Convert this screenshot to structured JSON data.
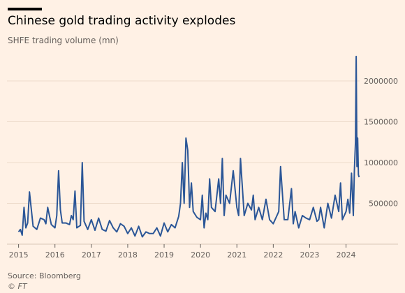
{
  "header": {
    "title": "Chinese gold trading activity explodes",
    "subtitle": "SHFE trading volume (mn)"
  },
  "footer": {
    "source": "Source: Bloomberg",
    "credit": "© FT"
  },
  "colors": {
    "background": "#fff1e5",
    "line": "#2b5697",
    "grid": "#eddbcb",
    "text": "#66605c",
    "title": "#000000",
    "topbar": "#000000"
  },
  "chart_data": {
    "type": "line",
    "title": "Chinese gold trading activity explodes",
    "subtitle": "SHFE trading volume (mn)",
    "xlabel": "",
    "ylabel": "",
    "xlim": [
      2014.95,
      2024.45
    ],
    "ylim": [
      0,
      2350000
    ],
    "x_ticks": [
      2015,
      2016,
      2017,
      2018,
      2019,
      2020,
      2021,
      2022,
      2023,
      2024
    ],
    "x_tick_labels": [
      "2015",
      "2016",
      "2017",
      "2018",
      "2019",
      "2020",
      "2021",
      "2022",
      "2023",
      "2024"
    ],
    "y_ticks": [
      500000,
      1000000,
      1500000,
      2000000
    ],
    "y_tick_labels": [
      "500000",
      "1000000",
      "1500000",
      "2000000"
    ],
    "y_axis_side": "right",
    "grid": "horizontal",
    "legend": "none",
    "series": [
      {
        "x": [
          2015.0,
          2015.05,
          2015.1,
          2015.15,
          2015.2,
          2015.25,
          2015.3,
          2015.4,
          2015.5,
          2015.6,
          2015.7,
          2015.75,
          2015.8,
          2015.9,
          2016.0,
          2016.05,
          2016.1,
          2016.15,
          2016.2,
          2016.3,
          2016.4,
          2016.45,
          2016.5,
          2016.55,
          2016.6,
          2016.7,
          2016.75,
          2016.8,
          2016.9,
          2017.0,
          2017.1,
          2017.2,
          2017.3,
          2017.4,
          2017.5,
          2017.6,
          2017.7,
          2017.8,
          2017.9,
          2018.0,
          2018.1,
          2018.2,
          2018.3,
          2018.4,
          2018.5,
          2018.6,
          2018.7,
          2018.8,
          2018.9,
          2019.0,
          2019.1,
          2019.2,
          2019.3,
          2019.4,
          2019.45,
          2019.5,
          2019.55,
          2019.6,
          2019.65,
          2019.7,
          2019.75,
          2019.8,
          2019.9,
          2020.0,
          2020.05,
          2020.1,
          2020.15,
          2020.2,
          2020.25,
          2020.3,
          2020.4,
          2020.5,
          2020.55,
          2020.6,
          2020.65,
          2020.7,
          2020.8,
          2020.9,
          2021.0,
          2021.05,
          2021.1,
          2021.2,
          2021.3,
          2021.4,
          2021.45,
          2021.5,
          2021.6,
          2021.7,
          2021.8,
          2021.9,
          2022.0,
          2022.1,
          2022.15,
          2022.2,
          2022.3,
          2022.4,
          2022.5,
          2022.55,
          2022.6,
          2022.7,
          2022.8,
          2022.9,
          2023.0,
          2023.1,
          2023.2,
          2023.25,
          2023.3,
          2023.4,
          2023.5,
          2023.6,
          2023.7,
          2023.8,
          2023.85,
          2023.9,
          2024.0,
          2024.05,
          2024.1,
          2024.15,
          2024.2,
          2024.23,
          2024.26,
          2024.28,
          2024.3,
          2024.32,
          2024.34,
          2024.36
        ],
        "values": [
          150000,
          180000,
          110000,
          450000,
          200000,
          260000,
          640000,
          220000,
          180000,
          320000,
          300000,
          250000,
          450000,
          240000,
          200000,
          350000,
          900000,
          420000,
          260000,
          260000,
          240000,
          350000,
          300000,
          650000,
          200000,
          230000,
          1000000,
          280000,
          180000,
          300000,
          170000,
          320000,
          180000,
          160000,
          290000,
          200000,
          150000,
          250000,
          220000,
          130000,
          200000,
          100000,
          220000,
          90000,
          150000,
          130000,
          130000,
          200000,
          100000,
          260000,
          150000,
          240000,
          200000,
          340000,
          500000,
          1000000,
          500000,
          1300000,
          1150000,
          450000,
          750000,
          400000,
          330000,
          300000,
          600000,
          200000,
          380000,
          300000,
          800000,
          450000,
          400000,
          800000,
          500000,
          1050000,
          350000,
          600000,
          500000,
          900000,
          450000,
          350000,
          1050000,
          350000,
          500000,
          420000,
          600000,
          300000,
          450000,
          300000,
          550000,
          300000,
          250000,
          350000,
          400000,
          950000,
          300000,
          300000,
          680000,
          250000,
          400000,
          200000,
          350000,
          320000,
          300000,
          450000,
          280000,
          300000,
          450000,
          200000,
          500000,
          320000,
          600000,
          400000,
          750000,
          300000,
          400000,
          550000,
          380000,
          870000,
          350000,
          900000,
          1250000,
          2300000,
          950000,
          1300000,
          850000,
          820000
        ]
      }
    ]
  }
}
